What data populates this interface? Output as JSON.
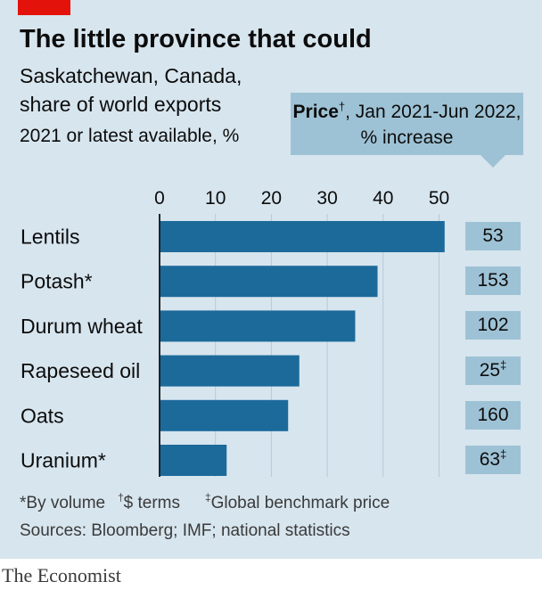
{
  "header": {
    "title": "The little province that could",
    "subtitle_lines": [
      "Saskatchewan, Canada,",
      "share of world exports",
      "2021 or latest available, %"
    ]
  },
  "price_header": {
    "bold": "Price",
    "mark": "†",
    "period": ", Jan 2021-Jun 2022,",
    "line2": "% increase"
  },
  "chart_data": {
    "type": "bar",
    "orientation": "horizontal",
    "categories": [
      "Lentils",
      "Potash*",
      "Durum wheat",
      "Rapeseed oil",
      "Oats",
      "Uranium*"
    ],
    "values": [
      51,
      39,
      35,
      25,
      23,
      12
    ],
    "xlim": [
      0,
      55
    ],
    "xticks": [
      "0",
      "10",
      "20",
      "30",
      "40",
      "50"
    ],
    "legend": "none",
    "bar_color": "#1c6a9a"
  },
  "price_values": [
    {
      "value": "53",
      "mark": ""
    },
    {
      "value": "153",
      "mark": ""
    },
    {
      "value": "102",
      "mark": ""
    },
    {
      "value": "25",
      "mark": "‡"
    },
    {
      "value": "160",
      "mark": ""
    },
    {
      "value": "63",
      "mark": "‡"
    }
  ],
  "footnotes": {
    "by_volume": "*By volume",
    "dollar_mark": "†",
    "dollar_terms": "$ terms",
    "benchmark_mark": "‡",
    "benchmark": "Global benchmark price",
    "sources": "Sources: Bloomberg; IMF; national statistics"
  },
  "brand": "The Economist",
  "colors": {
    "background": "#d7e5ee",
    "bar": "#1c6a9a",
    "price_box": "#9ec2d5",
    "red_tag": "#e3120b"
  }
}
